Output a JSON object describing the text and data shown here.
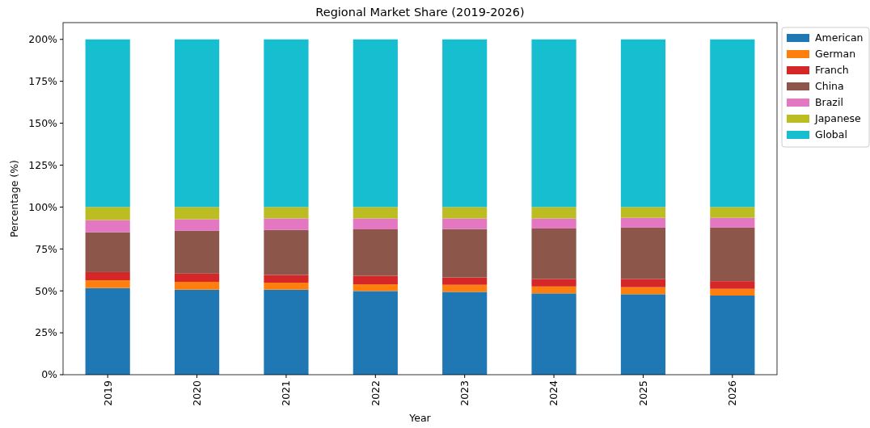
{
  "chart_data": {
    "type": "bar",
    "title": "Regional Market Share (2019-2026)",
    "xlabel": "Year",
    "ylabel": "Percentage (%)",
    "stacked": true,
    "legend": "top right",
    "categories": [
      "2019",
      "2020",
      "2021",
      "2022",
      "2023",
      "2024",
      "2025",
      "2026"
    ],
    "ylim": [
      0,
      210
    ],
    "yticks": [
      {
        "value": 0,
        "label": "0%"
      },
      {
        "value": 25,
        "label": "25%"
      },
      {
        "value": 50,
        "label": "50%"
      },
      {
        "value": 75,
        "label": "75%"
      },
      {
        "value": 100,
        "label": "100%"
      },
      {
        "value": 125,
        "label": "125%"
      },
      {
        "value": 150,
        "label": "150%"
      },
      {
        "value": 175,
        "label": "175%"
      },
      {
        "value": 200,
        "label": "200%"
      }
    ],
    "series": [
      {
        "name": "American",
        "color": "#1f77b4",
        "values": [
          51.7,
          50.7,
          50.7,
          49.9,
          49.4,
          48.5,
          48.0,
          47.2
        ]
      },
      {
        "name": "German",
        "color": "#ff7f0e",
        "values": [
          4.6,
          4.7,
          4.2,
          4.0,
          4.2,
          4.1,
          4.2,
          4.0
        ]
      },
      {
        "name": "Franch",
        "color": "#d62728",
        "values": [
          4.9,
          4.9,
          4.6,
          5.1,
          4.4,
          4.5,
          4.9,
          4.6
        ]
      },
      {
        "name": "China",
        "color": "#8c564b",
        "values": [
          23.8,
          25.5,
          26.8,
          27.7,
          28.9,
          30.1,
          30.6,
          31.9
        ]
      },
      {
        "name": "Brazil",
        "color": "#e377c2",
        "values": [
          7.2,
          6.9,
          6.9,
          6.5,
          6.3,
          6.0,
          5.9,
          5.9
        ]
      },
      {
        "name": "Japanese",
        "color": "#bcbd22",
        "values": [
          7.8,
          7.3,
          6.8,
          6.8,
          6.8,
          6.8,
          6.4,
          6.4
        ]
      },
      {
        "name": "Global",
        "color": "#17becf",
        "values": [
          100,
          100,
          100,
          100,
          100,
          100,
          100,
          100
        ]
      }
    ]
  }
}
